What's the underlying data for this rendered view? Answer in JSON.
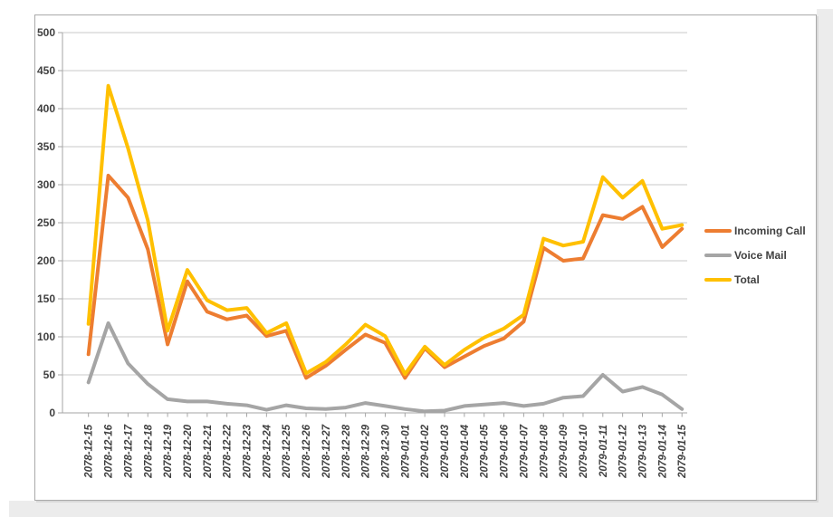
{
  "chart_data": {
    "type": "line",
    "title": "",
    "xlabel": "",
    "ylabel": "",
    "categories": [
      "2078-12-15",
      "2078-12-16",
      "2078-12-17",
      "2078-12-18",
      "2078-12-19",
      "2078-12-20",
      "2078-12-21",
      "2078-12-22",
      "2078-12-23",
      "2078-12-24",
      "2078-12-25",
      "2078-12-26",
      "2078-12-27",
      "2078-12-28",
      "2078-12-29",
      "2078-12-30",
      "2079-01-01",
      "2079-01-02",
      "2079-01-03",
      "2079-01-04",
      "2079-01-05",
      "2079-01-06",
      "2079-01-07",
      "2079-01-08",
      "2079-01-09",
      "2079-01-10",
      "2079-01-11",
      "2079-01-12",
      "2079-01-13",
      "2079-01-14",
      "2079-01-15"
    ],
    "series": [
      {
        "name": "Incoming Call",
        "color": "#ED7D31",
        "values": [
          77,
          312,
          283,
          215,
          90,
          173,
          133,
          123,
          128,
          101,
          108,
          46,
          62,
          83,
          103,
          92,
          46,
          85,
          60,
          74,
          88,
          98,
          120,
          217,
          200,
          203,
          260,
          255,
          271,
          218,
          242
        ]
      },
      {
        "name": "Voice Mail",
        "color": "#A5A5A5",
        "values": [
          40,
          118,
          65,
          38,
          18,
          15,
          15,
          12,
          10,
          4,
          10,
          6,
          5,
          7,
          13,
          9,
          5,
          2,
          3,
          9,
          11,
          13,
          9,
          12,
          20,
          22,
          50,
          28,
          34,
          24,
          5
        ]
      },
      {
        "name": "Total",
        "color": "#FFC000",
        "values": [
          117,
          430,
          348,
          253,
          108,
          188,
          148,
          135,
          138,
          105,
          118,
          52,
          67,
          90,
          116,
          101,
          51,
          87,
          63,
          83,
          99,
          111,
          129,
          229,
          220,
          225,
          310,
          283,
          305,
          242,
          247
        ]
      }
    ],
    "ylim": [
      0,
      500
    ],
    "y_tick_step": 50,
    "y_tick_labels": [
      "0",
      "50",
      "100",
      "150",
      "200",
      "250",
      "300",
      "350",
      "400",
      "450",
      "500"
    ],
    "grid": "horizontal",
    "legend_position": "right",
    "x_label_rotation_deg": 90,
    "x_label_style": "italic"
  },
  "colors": {
    "axis": "#a6a6a6",
    "gridline": "#c9c9c9",
    "tick_text": "#404040",
    "frame_border": "#a9a9a9",
    "chart_background": "#ffffff",
    "page_background": "#ffffff",
    "window_edge": "#ececec"
  }
}
